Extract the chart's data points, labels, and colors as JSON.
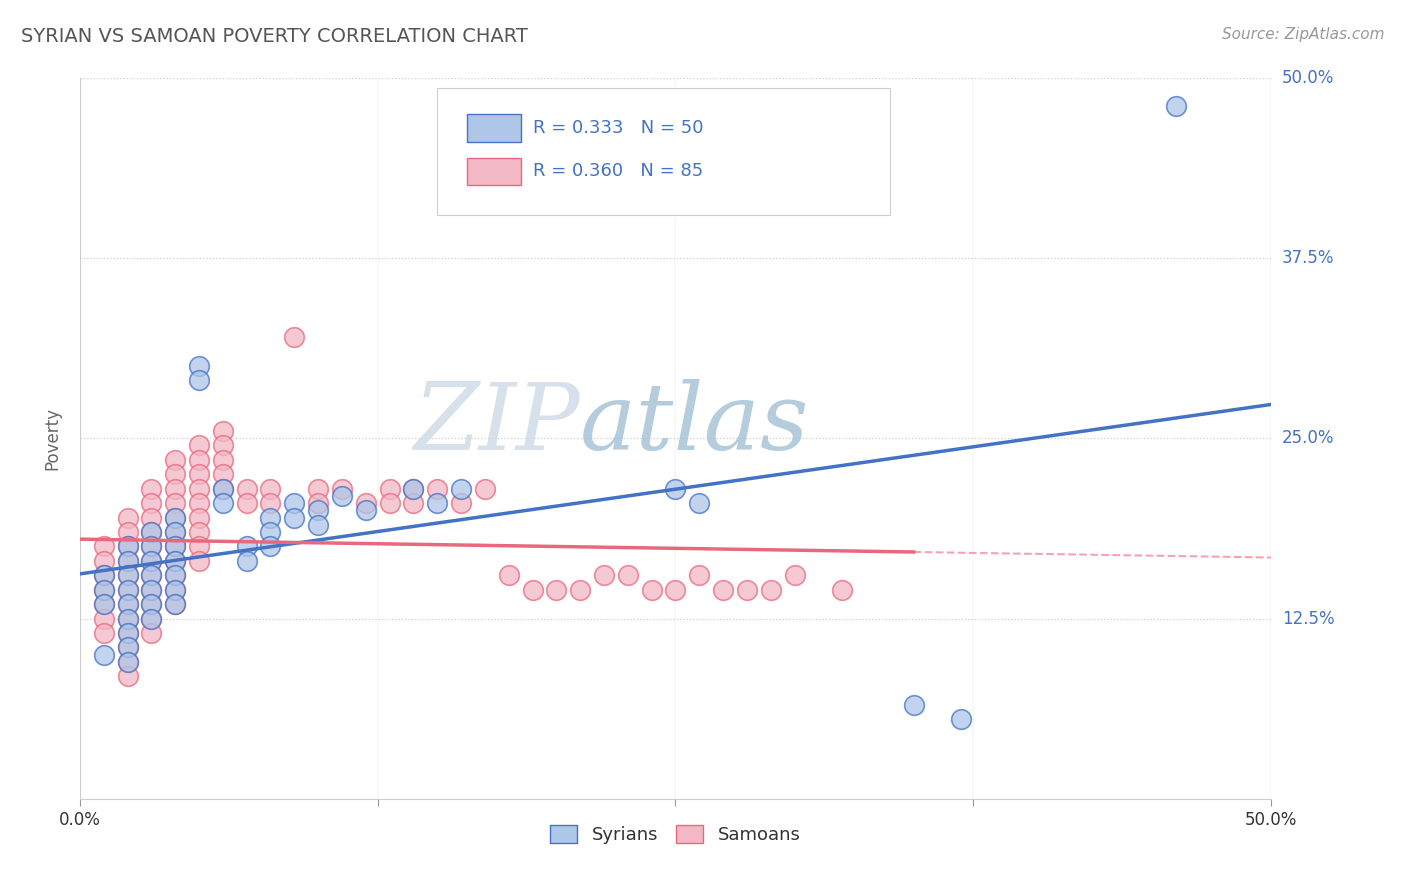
{
  "title": "SYRIAN VS SAMOAN POVERTY CORRELATION CHART",
  "source": "Source: ZipAtlas.com",
  "ylabel": "Poverty",
  "xlim": [
    0.0,
    0.5
  ],
  "ylim": [
    0.0,
    0.5
  ],
  "xtick_positions": [
    0.0,
    0.125,
    0.25,
    0.375,
    0.5
  ],
  "xtick_labels_show": [
    "0.0%",
    "",
    "",
    "",
    "50.0%"
  ],
  "ytick_positions_right": [
    0.125,
    0.25,
    0.375,
    0.5
  ],
  "ytick_labels_right": [
    "12.5%",
    "25.0%",
    "37.5%",
    "50.0%"
  ],
  "legend_r_n": [
    {
      "r": "0.333",
      "n": "50"
    },
    {
      "r": "0.360",
      "n": "85"
    }
  ],
  "syrian_color": "#4472c4",
  "samoan_color": "#e8697d",
  "syrian_color_fill": "#aec6e8",
  "samoan_color_fill": "#f2b8c6",
  "syrian_scatter": [
    [
      0.01,
      0.155
    ],
    [
      0.01,
      0.145
    ],
    [
      0.01,
      0.135
    ],
    [
      0.01,
      0.1
    ],
    [
      0.02,
      0.175
    ],
    [
      0.02,
      0.165
    ],
    [
      0.02,
      0.155
    ],
    [
      0.02,
      0.145
    ],
    [
      0.02,
      0.135
    ],
    [
      0.02,
      0.125
    ],
    [
      0.02,
      0.115
    ],
    [
      0.02,
      0.105
    ],
    [
      0.02,
      0.095
    ],
    [
      0.03,
      0.185
    ],
    [
      0.03,
      0.175
    ],
    [
      0.03,
      0.165
    ],
    [
      0.03,
      0.155
    ],
    [
      0.03,
      0.145
    ],
    [
      0.03,
      0.135
    ],
    [
      0.03,
      0.125
    ],
    [
      0.04,
      0.195
    ],
    [
      0.04,
      0.185
    ],
    [
      0.04,
      0.175
    ],
    [
      0.04,
      0.165
    ],
    [
      0.04,
      0.155
    ],
    [
      0.04,
      0.145
    ],
    [
      0.04,
      0.135
    ],
    [
      0.05,
      0.3
    ],
    [
      0.05,
      0.29
    ],
    [
      0.06,
      0.215
    ],
    [
      0.06,
      0.205
    ],
    [
      0.07,
      0.175
    ],
    [
      0.07,
      0.165
    ],
    [
      0.08,
      0.195
    ],
    [
      0.08,
      0.185
    ],
    [
      0.08,
      0.175
    ],
    [
      0.09,
      0.205
    ],
    [
      0.09,
      0.195
    ],
    [
      0.1,
      0.2
    ],
    [
      0.1,
      0.19
    ],
    [
      0.11,
      0.21
    ],
    [
      0.12,
      0.2
    ],
    [
      0.14,
      0.215
    ],
    [
      0.15,
      0.205
    ],
    [
      0.16,
      0.215
    ],
    [
      0.25,
      0.215
    ],
    [
      0.26,
      0.205
    ],
    [
      0.35,
      0.065
    ],
    [
      0.37,
      0.055
    ],
    [
      0.46,
      0.48
    ]
  ],
  "samoan_scatter": [
    [
      0.01,
      0.175
    ],
    [
      0.01,
      0.165
    ],
    [
      0.01,
      0.155
    ],
    [
      0.01,
      0.145
    ],
    [
      0.01,
      0.135
    ],
    [
      0.01,
      0.125
    ],
    [
      0.01,
      0.115
    ],
    [
      0.02,
      0.195
    ],
    [
      0.02,
      0.185
    ],
    [
      0.02,
      0.175
    ],
    [
      0.02,
      0.165
    ],
    [
      0.02,
      0.155
    ],
    [
      0.02,
      0.145
    ],
    [
      0.02,
      0.135
    ],
    [
      0.02,
      0.125
    ],
    [
      0.02,
      0.115
    ],
    [
      0.02,
      0.105
    ],
    [
      0.02,
      0.095
    ],
    [
      0.02,
      0.085
    ],
    [
      0.03,
      0.215
    ],
    [
      0.03,
      0.205
    ],
    [
      0.03,
      0.195
    ],
    [
      0.03,
      0.185
    ],
    [
      0.03,
      0.175
    ],
    [
      0.03,
      0.165
    ],
    [
      0.03,
      0.155
    ],
    [
      0.03,
      0.145
    ],
    [
      0.03,
      0.135
    ],
    [
      0.03,
      0.125
    ],
    [
      0.03,
      0.115
    ],
    [
      0.04,
      0.235
    ],
    [
      0.04,
      0.225
    ],
    [
      0.04,
      0.215
    ],
    [
      0.04,
      0.205
    ],
    [
      0.04,
      0.195
    ],
    [
      0.04,
      0.185
    ],
    [
      0.04,
      0.175
    ],
    [
      0.04,
      0.165
    ],
    [
      0.04,
      0.155
    ],
    [
      0.04,
      0.145
    ],
    [
      0.04,
      0.135
    ],
    [
      0.05,
      0.245
    ],
    [
      0.05,
      0.235
    ],
    [
      0.05,
      0.225
    ],
    [
      0.05,
      0.215
    ],
    [
      0.05,
      0.205
    ],
    [
      0.05,
      0.195
    ],
    [
      0.05,
      0.185
    ],
    [
      0.05,
      0.175
    ],
    [
      0.05,
      0.165
    ],
    [
      0.06,
      0.255
    ],
    [
      0.06,
      0.245
    ],
    [
      0.06,
      0.235
    ],
    [
      0.06,
      0.225
    ],
    [
      0.06,
      0.215
    ],
    [
      0.07,
      0.215
    ],
    [
      0.07,
      0.205
    ],
    [
      0.08,
      0.215
    ],
    [
      0.08,
      0.205
    ],
    [
      0.09,
      0.32
    ],
    [
      0.1,
      0.215
    ],
    [
      0.1,
      0.205
    ],
    [
      0.11,
      0.215
    ],
    [
      0.12,
      0.205
    ],
    [
      0.13,
      0.215
    ],
    [
      0.13,
      0.205
    ],
    [
      0.14,
      0.215
    ],
    [
      0.14,
      0.205
    ],
    [
      0.15,
      0.215
    ],
    [
      0.16,
      0.205
    ],
    [
      0.17,
      0.215
    ],
    [
      0.18,
      0.155
    ],
    [
      0.19,
      0.145
    ],
    [
      0.2,
      0.145
    ],
    [
      0.21,
      0.145
    ],
    [
      0.22,
      0.155
    ],
    [
      0.23,
      0.155
    ],
    [
      0.24,
      0.145
    ],
    [
      0.25,
      0.145
    ],
    [
      0.26,
      0.155
    ],
    [
      0.27,
      0.145
    ],
    [
      0.28,
      0.145
    ],
    [
      0.29,
      0.145
    ],
    [
      0.3,
      0.155
    ],
    [
      0.32,
      0.145
    ]
  ],
  "watermark_zip_color": "#c0cfe0",
  "watermark_atlas_color": "#a0bbd0",
  "background_color": "#ffffff",
  "grid_color": "#cccccc",
  "title_color": "#555555"
}
